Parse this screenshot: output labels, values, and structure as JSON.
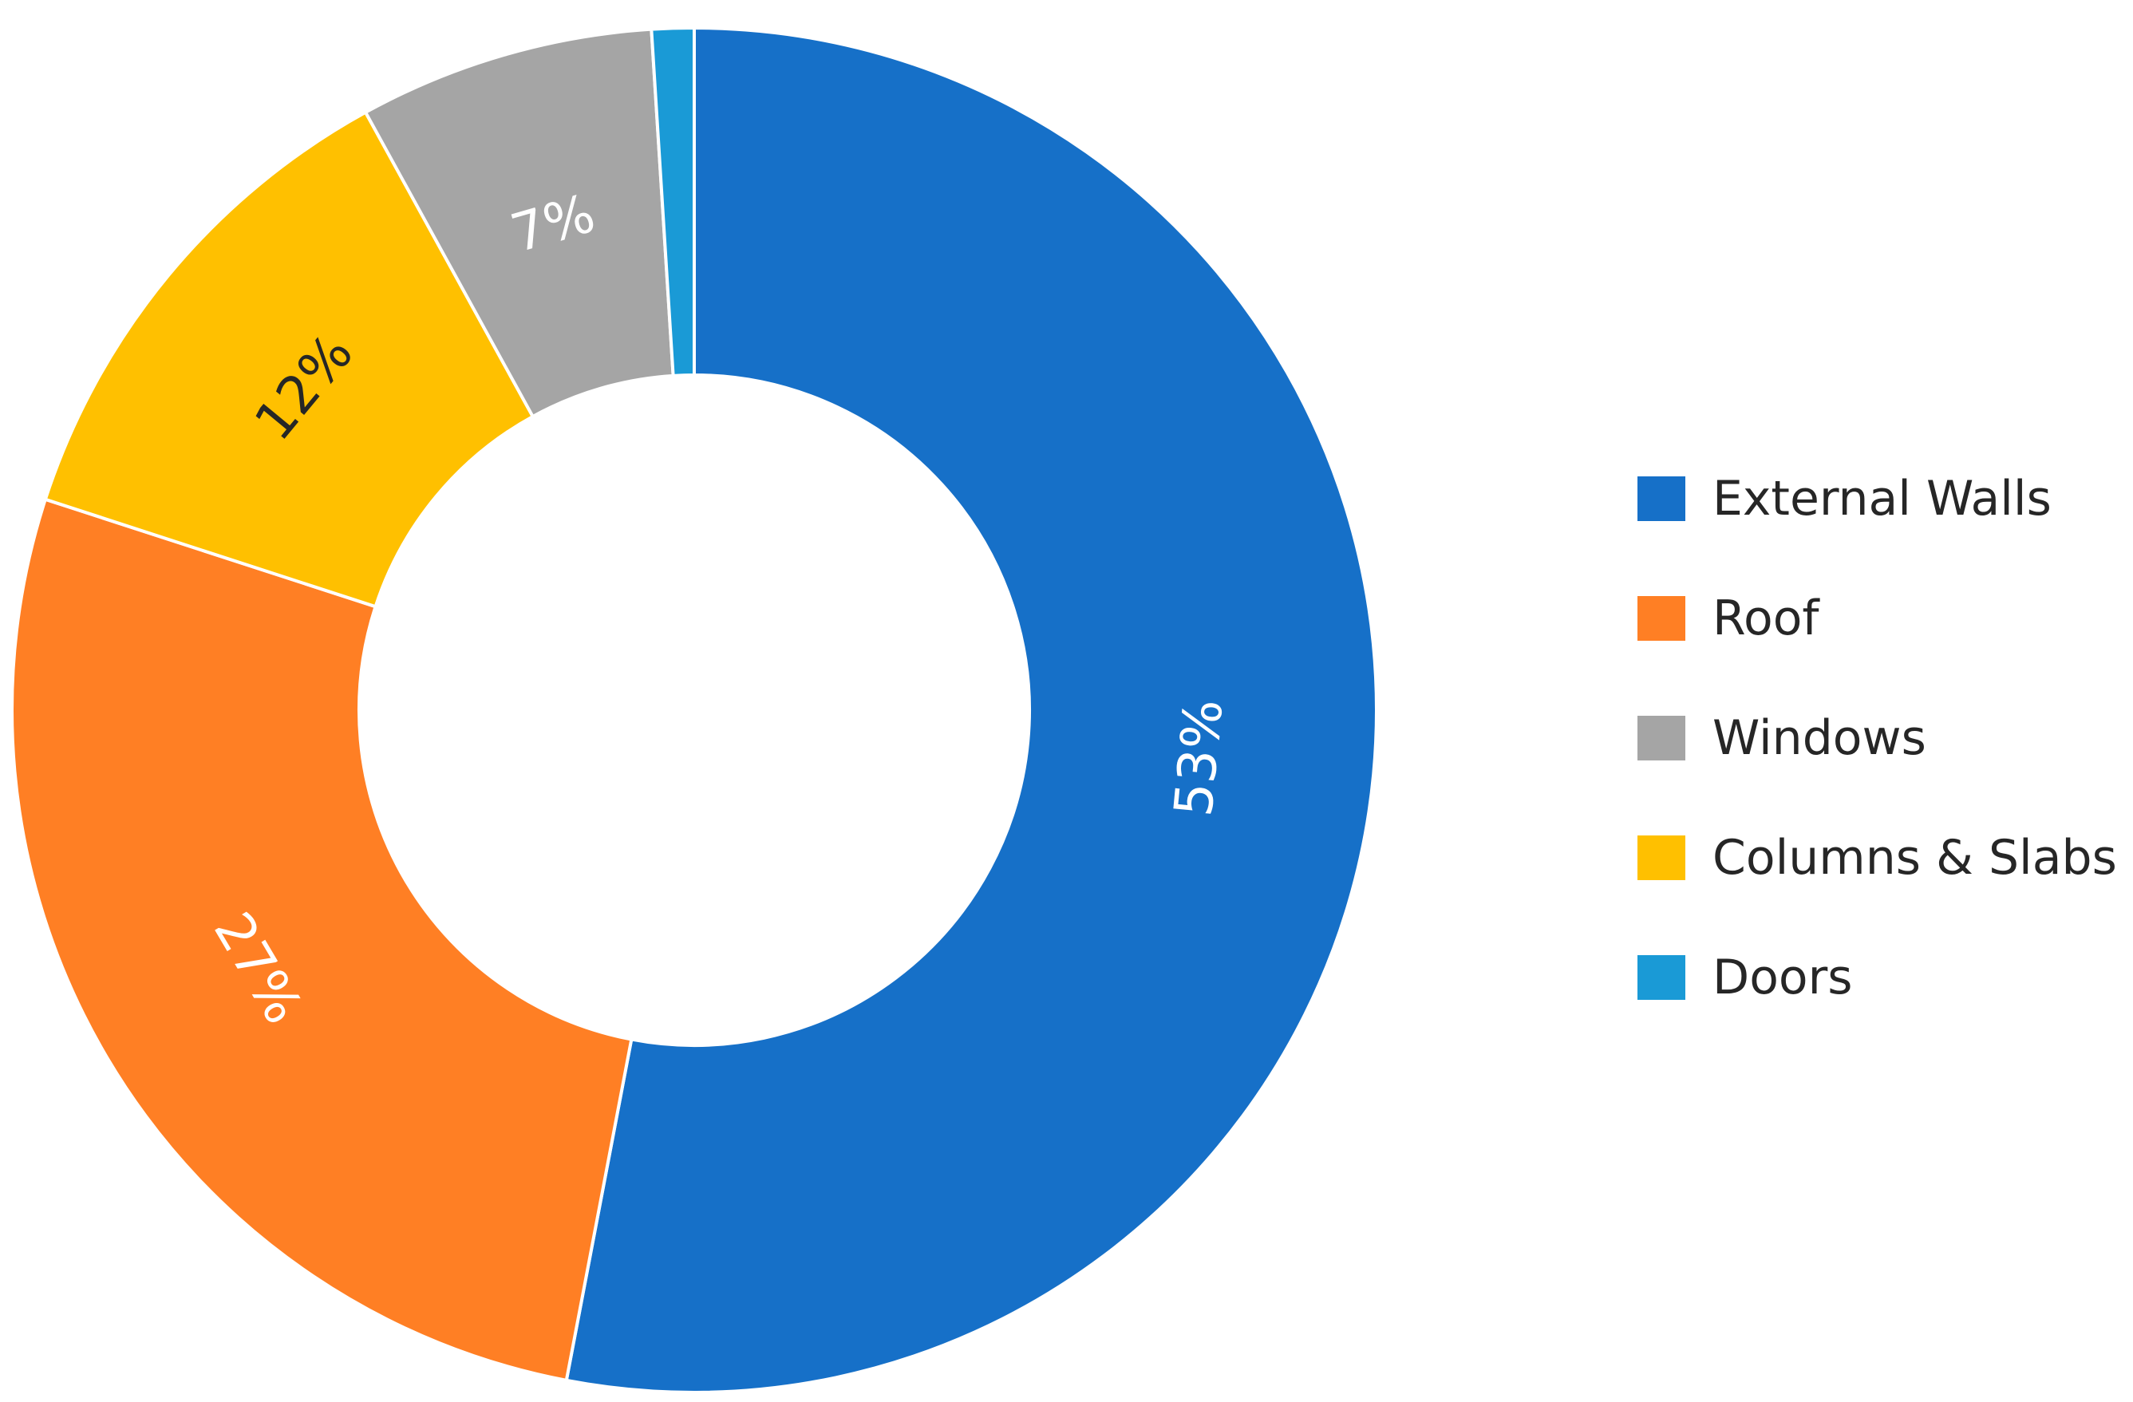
{
  "chart_data": {
    "type": "pie",
    "style": "donut",
    "title": "",
    "legend_position": "right",
    "categories": [
      "External Walls",
      "Roof",
      "Columns & Slabs",
      "Windows",
      "Doors"
    ],
    "values": [
      53.0,
      27.0,
      12.0,
      7.0,
      1.0
    ],
    "colors": [
      "#1670C8",
      "#FF7F24",
      "#FFC000",
      "#A5A5A5",
      "#1A9AD6"
    ],
    "data_labels": [
      "53%",
      "27%",
      "12%",
      "7%",
      ""
    ],
    "data_label_colors": [
      "#ffffff",
      "#ffffff",
      "#262626",
      "#ffffff",
      "#ffffff"
    ],
    "legend_order": [
      "External Walls",
      "Roof",
      "Windows",
      "Columns & Slabs",
      "Doors"
    ]
  }
}
